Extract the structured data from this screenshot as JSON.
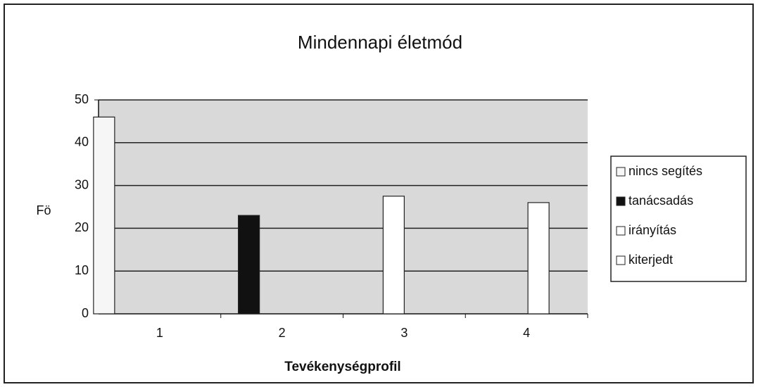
{
  "chart_data": {
    "type": "bar",
    "title": "Mindennapi életmód",
    "x_label": "Tevékenységprofil",
    "y_label": "Fö",
    "categories": [
      "1",
      "2",
      "3",
      "4"
    ],
    "series": [
      {
        "name": "nincs segítés",
        "color": "#f6f6f6",
        "values": [
          46,
          0,
          0,
          0
        ]
      },
      {
        "name": "tanácsadás",
        "color": "#111111",
        "values": [
          0,
          23,
          0,
          0
        ]
      },
      {
        "name": "irányítás",
        "color": "#ffffff",
        "values": [
          0,
          0,
          27.5,
          0
        ]
      },
      {
        "name": "kiterjedt",
        "color": "#ffffff",
        "values": [
          0,
          0,
          0,
          26
        ]
      }
    ],
    "ylim": [
      0,
      50
    ],
    "yticks": [
      0,
      10,
      20,
      30,
      40,
      50
    ],
    "grid": true,
    "legend": "right"
  }
}
